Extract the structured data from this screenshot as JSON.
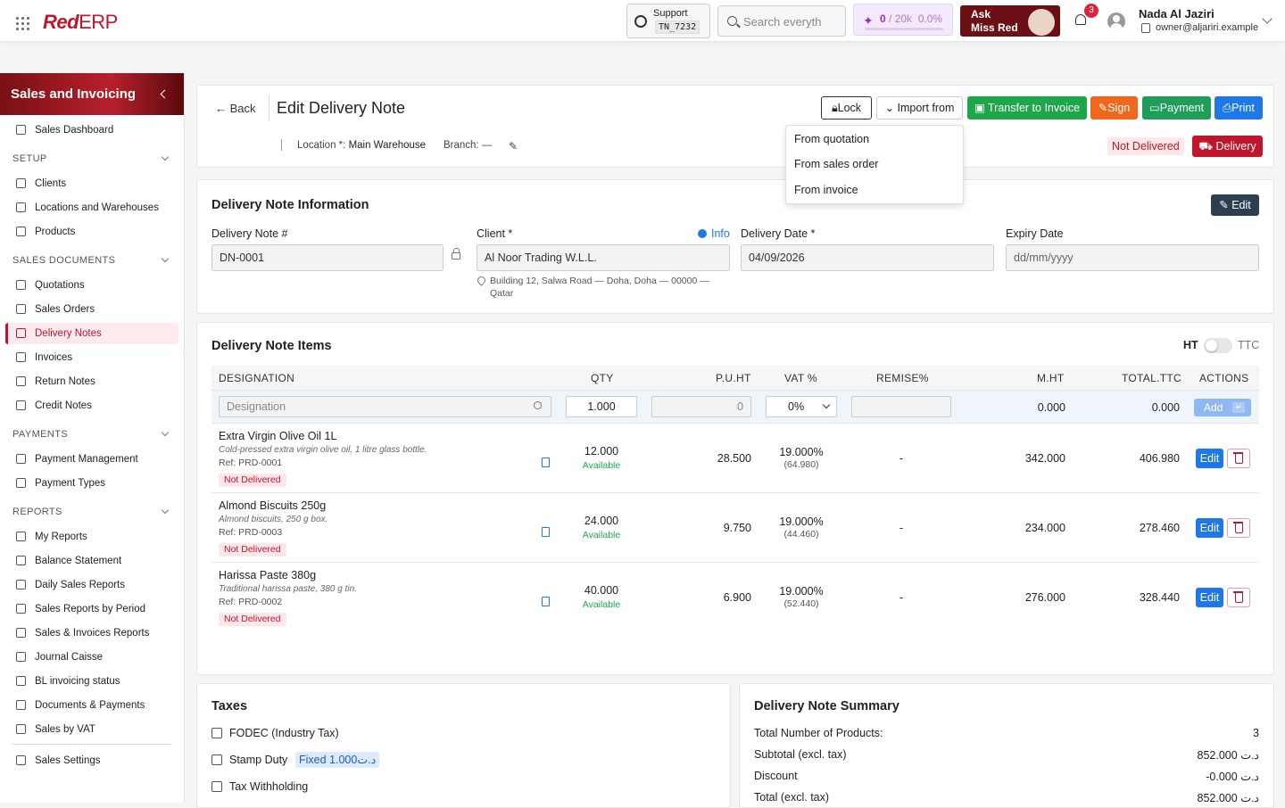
{
  "app": {
    "logo_red": "Red",
    "logo_erp": "ERP"
  },
  "topbar": {
    "support_label": "Support",
    "support_code": "TN_7232",
    "search_placeholder": "Search everyth",
    "credits_used": "0",
    "credits_total": "/ 20k",
    "credits_pct": "0.0%",
    "credits_fraction": 0.0,
    "ask_line1": "Ask",
    "ask_line2": "Miss Red",
    "notifications": "3",
    "user_name": "Nada Al Jaziri",
    "user_email": "owner@aljariri.example"
  },
  "sidebar": {
    "title": "Sales and Invoicing",
    "dashboard": "Sales Dashboard",
    "sections": {
      "setup": "SETUP",
      "sales_documents": "SALES DOCUMENTS",
      "payments": "PAYMENTS",
      "reports": "REPORTS"
    },
    "setup_items": [
      "Clients",
      "Locations and Warehouses",
      "Products"
    ],
    "sales_items": [
      "Quotations",
      "Sales Orders",
      "Delivery Notes",
      "Invoices",
      "Return Notes",
      "Credit Notes"
    ],
    "payment_items": [
      "Payment Management",
      "Payment Types"
    ],
    "report_items": [
      "My Reports",
      "Balance Statement",
      "Daily Sales Reports",
      "Sales Reports by Period",
      "Sales & Invoices Reports",
      "Journal Caisse",
      "BL invoicing status",
      "Documents & Payments",
      "Sales by VAT"
    ],
    "settings": "Sales Settings"
  },
  "header": {
    "back": "Back",
    "title": "Edit Delivery Note",
    "lock": "Lock",
    "import_from": "Import from",
    "transfer": "Transfer to Invoice",
    "sign": "Sign",
    "payment": "Payment",
    "print": "Print",
    "location_label": "Location *:",
    "location_value": "Main Warehouse",
    "branch": "Branch: —",
    "status": "Not Delivered",
    "delivery": "Delivery",
    "import_menu": [
      "From quotation",
      "From sales order",
      "From invoice"
    ]
  },
  "info": {
    "title": "Delivery Note Information",
    "edit": "Edit",
    "number_label": "Delivery Note #",
    "number_value": "DN-0001",
    "client_label": "Client *",
    "info_link": "Info",
    "client_value": "Al Noor Trading W.L.L.",
    "client_address": "Building 12, Salwa Road — Doha, Doha — 00000 — Qatar",
    "date_label": "Delivery Date *",
    "date_value": "04/09/2026",
    "expiry_label": "Expiry Date",
    "expiry_placeholder": "dd/mm/yyyy"
  },
  "items": {
    "title": "Delivery Note Items",
    "ht": "HT",
    "ttc": "TTC",
    "columns": [
      "DESIGNATION",
      "QTY",
      "P.U.HT",
      "VAT %",
      "REMISE%",
      "M.HT",
      "TOTAL.TTC",
      "ACTIONS"
    ],
    "new_row": {
      "designation_placeholder": "Designation",
      "qty": "1.000",
      "price": "0",
      "vat": "0%",
      "mht": "0.000",
      "ttc": "0.000",
      "add": "Add"
    },
    "rows": [
      {
        "name": "Extra Virgin Olive Oil 1L",
        "desc": "Cold-pressed extra virgin olive oil, 1 litre glass bottle.",
        "ref": "Ref: PRD-0001",
        "status": "Not Delivered",
        "qty": "12.000",
        "avail": "Available",
        "price": "28.500",
        "vat": "19.000%",
        "vat_amount": "(64.980)",
        "remise": "-",
        "mht": "342.000",
        "ttc": "406.980",
        "edit": "Edit"
      },
      {
        "name": "Almond Biscuits 250g",
        "desc": "Almond biscuits, 250 g box.",
        "ref": "Ref: PRD-0003",
        "status": "Not Delivered",
        "qty": "24.000",
        "avail": "Available",
        "price": "9.750",
        "vat": "19.000%",
        "vat_amount": "(44.460)",
        "remise": "-",
        "mht": "234.000",
        "ttc": "278.460",
        "edit": "Edit"
      },
      {
        "name": "Harissa Paste 380g",
        "desc": "Traditional harissa paste, 380 g tin.",
        "ref": "Ref: PRD-0002",
        "status": "Not Delivered",
        "qty": "40.000",
        "avail": "Available",
        "price": "6.900",
        "vat": "19.000%",
        "vat_amount": "(52.440)",
        "remise": "-",
        "mht": "276.000",
        "ttc": "328.440",
        "edit": "Edit"
      }
    ]
  },
  "taxes": {
    "title": "Taxes",
    "fodec": "FODEC (Industry Tax)",
    "stamp": "Stamp Duty",
    "stamp_chip": "Fixed 1.000د.ت",
    "withholding": "Tax Withholding"
  },
  "summary": {
    "title": "Delivery Note Summary",
    "rows": [
      {
        "label": "Total Number of Products:",
        "value": "3"
      },
      {
        "label": "Subtotal (excl. tax)",
        "value": "852.000 د.ت"
      },
      {
        "label": "Discount",
        "value": "-0.000 د.ت"
      },
      {
        "label": "Total (excl. tax)",
        "value": "852.000 د.ت"
      }
    ]
  }
}
